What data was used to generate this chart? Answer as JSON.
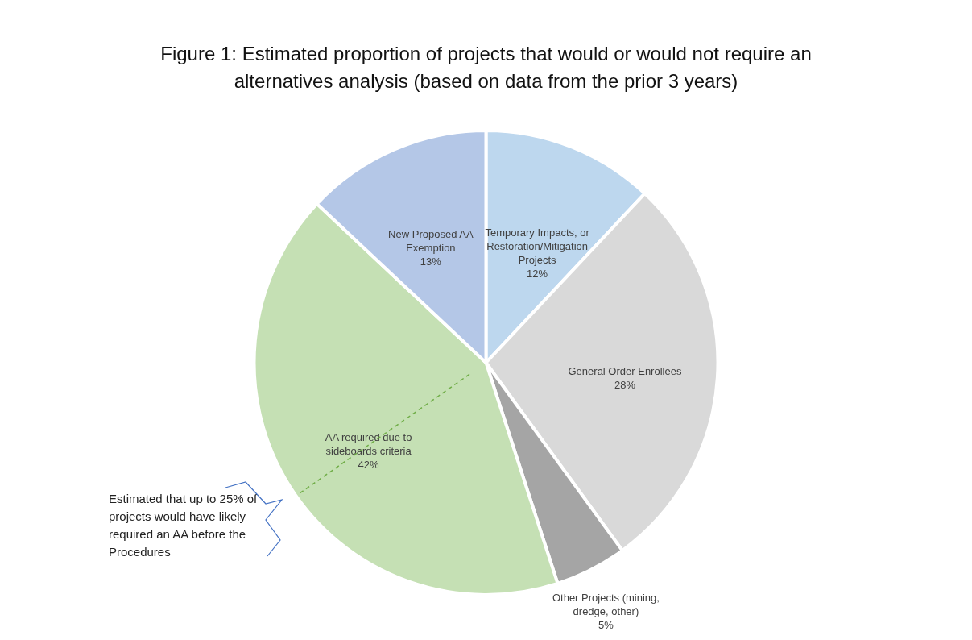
{
  "chart_data": {
    "type": "pie",
    "title": "Figure 1: Estimated proportion of projects that would or would not require an alternatives analysis (based on data from the prior 3 years)",
    "categories": [
      "Temporary Impacts, or Restoration/Mitigation Projects",
      "General Order Enrollees",
      "Other Projects (mining, dredge, other)",
      "AA required due to sideboards criteria",
      "New Proposed AA Exemption"
    ],
    "values": [
      12,
      28,
      5,
      42,
      13
    ],
    "colors": [
      "#bdd7ee",
      "#d9d9d9",
      "#a5a5a5",
      "#c5e0b4",
      "#b4c7e7"
    ],
    "value_labels": [
      "12%",
      "28%",
      "5%",
      "42%",
      "13%"
    ],
    "annotations": [
      "Estimated that up to 25% of projects would have likely required an AA before the Procedures"
    ]
  }
}
